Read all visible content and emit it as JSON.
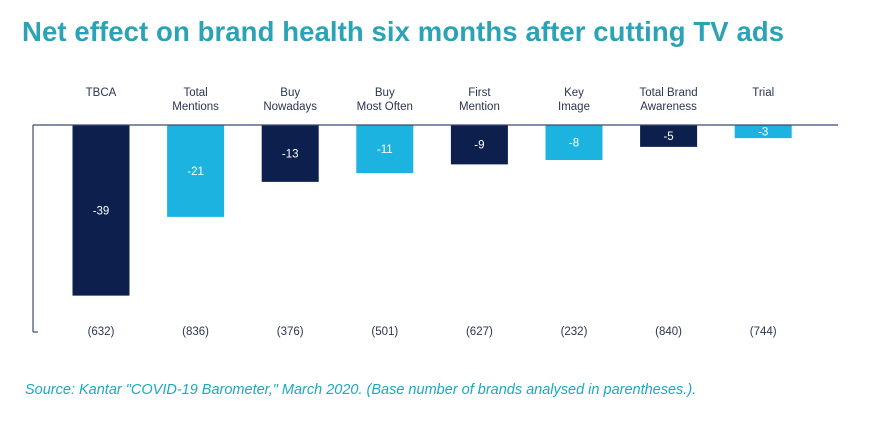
{
  "title": "Net effect on brand health six months after cutting TV ads",
  "source": "Source: Kantar \"COVID-19 Barometer,\" March 2020. (Base number of brands analysed in parentheses.).",
  "colors": {
    "title": "#2ba3b6",
    "dark": "#0c1f4d",
    "light": "#1cb3e0",
    "axis": "#3d4a70",
    "source": "#1aa9c2"
  },
  "chart_data": {
    "type": "bar",
    "categories": [
      [
        "TBCA"
      ],
      [
        "Total",
        "Mentions"
      ],
      [
        "Buy",
        "Nowadays"
      ],
      [
        "Buy",
        "Most Often"
      ],
      [
        "First",
        "Mention"
      ],
      [
        "Key",
        "Image"
      ],
      [
        "Total Brand",
        "Awareness"
      ],
      [
        "Trial"
      ]
    ],
    "values": [
      -39,
      -21,
      -13,
      -11,
      -9,
      -8,
      -5,
      -3
    ],
    "base_counts": [
      "(632)",
      "(836)",
      "(376)",
      "(501)",
      "(627)",
      "(232)",
      "(840)",
      "(744)"
    ],
    "bar_colors": [
      "dark",
      "light",
      "dark",
      "light",
      "dark",
      "light",
      "dark",
      "light"
    ],
    "ylim": [
      -40,
      0
    ],
    "grid": false,
    "legend": "none"
  }
}
